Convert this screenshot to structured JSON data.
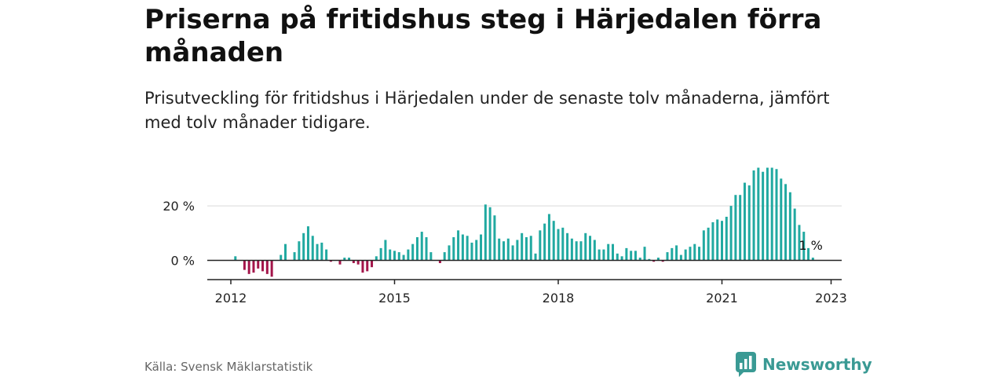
{
  "title": "Priserna på fritidshus steg i Härjedalen förra månaden",
  "subtitle": "Prisutveckling för fritidshus i Härjedalen under de senaste tolv månaderna, jämfört med tolv månader tidigare.",
  "source": "Källa: Svensk Mäklarstatistik",
  "brand": {
    "name": "Newsworthy",
    "logo_icon": "newsworthy-chart-icon",
    "color": "#3a9a94"
  },
  "colors": {
    "positive": "#21a9a1",
    "negative": "#a3154a",
    "axis": "#222222",
    "grid": "#d9d9d9"
  },
  "chart_data": {
    "type": "bar",
    "title": "Priserna på fritidshus steg i Härjedalen förra månaden",
    "xlabel": "",
    "ylabel": "",
    "y_ticks": [
      0,
      20
    ],
    "y_tick_labels": [
      "0 %",
      "20 %"
    ],
    "x_tick_years": [
      2012,
      2015,
      2018,
      2021,
      2023
    ],
    "x_tick_labels": [
      "2012",
      "2015",
      "2018",
      "2021",
      "2023"
    ],
    "ylim": [
      -7,
      35
    ],
    "grid": "horizontal",
    "end_label": "1 %",
    "start_month": "2012-01",
    "end_month": "2023-01",
    "values": [
      0,
      1.5,
      0,
      -3.5,
      -5,
      -4.5,
      -3,
      -4,
      -5,
      -6,
      0,
      2,
      6,
      0,
      3,
      7,
      10,
      12.5,
      9,
      6,
      6.5,
      4,
      -0.5,
      0,
      -1.5,
      1,
      1,
      -1,
      -1.5,
      -4.5,
      -4,
      -2.5,
      1.5,
      4.5,
      7.5,
      4,
      3.5,
      3,
      2,
      4,
      6,
      8.5,
      10.5,
      8.5,
      3,
      0,
      -1,
      3,
      5.5,
      8.5,
      11,
      9.5,
      9,
      6.5,
      7.5,
      9.5,
      20.5,
      19.5,
      16.5,
      8,
      7,
      8,
      5.5,
      7.5,
      10,
      8.5,
      9,
      2.5,
      11,
      13.5,
      17,
      14.5,
      11.5,
      12,
      10,
      8,
      7,
      7,
      10,
      9,
      7.5,
      4,
      4,
      6,
      6,
      2.5,
      1.5,
      4.5,
      3.5,
      3.5,
      1,
      5,
      0.5,
      -0.5,
      1,
      -0.5,
      3,
      4.5,
      5.5,
      2,
      4,
      5,
      6,
      5,
      11,
      12,
      14,
      15,
      14.5,
      16,
      20,
      24,
      24,
      28.5,
      27.5,
      33,
      34,
      32.5,
      34,
      34,
      33.5,
      30,
      28,
      25,
      19,
      13,
      10.5,
      4.5,
      1
    ]
  }
}
